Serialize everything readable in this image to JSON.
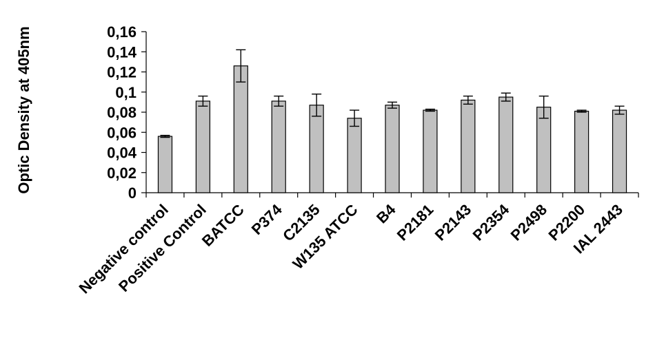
{
  "chart_data": {
    "type": "bar",
    "title": "",
    "xlabel": "",
    "ylabel": "Optic Density at 405nm",
    "ylim": [
      0,
      0.16
    ],
    "yticks": [
      "0",
      "0,02",
      "0,04",
      "0,06",
      "0,08",
      "0,1",
      "0,12",
      "0,14",
      "0,16"
    ],
    "grid": false,
    "bar_color": "#c0c0c0",
    "categories": [
      "Negative control",
      "Positive Control",
      "BATCC",
      "P374",
      "C2135",
      "W135 ATCC",
      "B4",
      "P2181",
      "P2143",
      "P2354",
      "P2498",
      "P2200",
      "IAL 2443"
    ],
    "values": [
      0.056,
      0.091,
      0.126,
      0.091,
      0.087,
      0.074,
      0.087,
      0.082,
      0.092,
      0.095,
      0.085,
      0.081,
      0.082
    ],
    "errors": [
      0.001,
      0.005,
      0.016,
      0.005,
      0.011,
      0.008,
      0.003,
      0.001,
      0.004,
      0.004,
      0.011,
      0.001,
      0.004
    ]
  }
}
